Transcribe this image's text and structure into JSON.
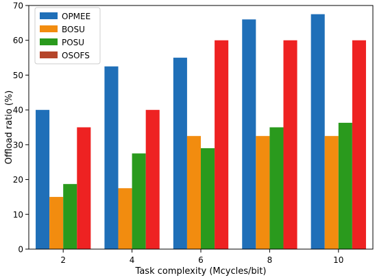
{
  "chart_data": {
    "type": "bar",
    "title": "",
    "xlabel": "Task complexity (Mcycles/bit)",
    "ylabel": "Offload ratio (%)",
    "categories": [
      "2",
      "4",
      "6",
      "8",
      "10"
    ],
    "ylim": [
      0,
      70
    ],
    "yticks": [
      "0",
      "10",
      "20",
      "30",
      "40",
      "50",
      "60",
      "70"
    ],
    "grid": false,
    "legend_position": "top-left",
    "series": [
      {
        "name": "OPMEE",
        "color": "#1f6fb8",
        "values": [
          40,
          52.5,
          55,
          66,
          67.5
        ]
      },
      {
        "name": "BOSU",
        "color": "#f28c0f",
        "values": [
          15,
          17.5,
          32.5,
          32.5,
          32.5
        ]
      },
      {
        "name": "POSU",
        "color": "#2a9a1d",
        "values": [
          18.7,
          27.5,
          29,
          35,
          36.3
        ]
      },
      {
        "name": "OSOFS",
        "color": "#ee2222",
        "legend_color": "#b5452a",
        "values": [
          35,
          40,
          60,
          60,
          60
        ]
      }
    ]
  }
}
